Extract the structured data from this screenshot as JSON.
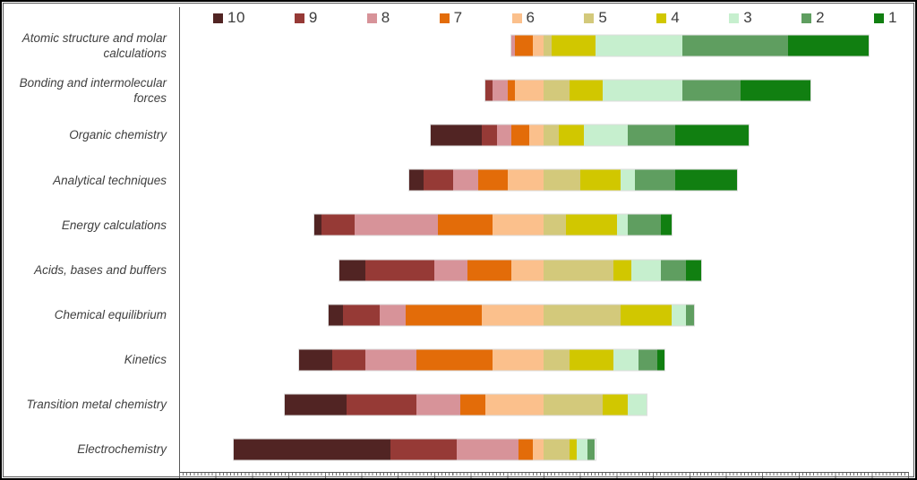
{
  "chart_data": {
    "type": "bar",
    "variant": "horizontal-diverging-stacked",
    "title": "",
    "legend_position": "top",
    "legend_order": [
      "10",
      "9",
      "8",
      "7",
      "6",
      "5",
      "4",
      "3",
      "2",
      "1"
    ],
    "axis": {
      "xmin": -100,
      "xmax": 100,
      "baseline": 0,
      "minor_tick_step": 1,
      "major_tick_step": 10,
      "tick_labels_visible": false,
      "grid": false,
      "left_side_series_count": 5
    },
    "categories": [
      "Atomic structure and molar calculations",
      "Bonding and intermolecular forces",
      "Organic chemistry",
      "Analytical techniques",
      "Energy calculations",
      "Acids, bases and buffers",
      "Chemical equilibrium",
      "Kinetics",
      "Transition metal chemistry",
      "Electrochemistry"
    ],
    "series": [
      {
        "name": "10",
        "color": "#512423",
        "values": [
          0,
          0,
          14,
          4,
          2,
          7,
          4,
          9,
          17,
          43
        ]
      },
      {
        "name": "9",
        "color": "#963a36",
        "values": [
          0,
          2,
          4,
          8,
          9,
          19,
          10,
          9,
          19,
          18
        ]
      },
      {
        "name": "8",
        "color": "#d79399",
        "values": [
          1,
          4,
          4,
          7,
          23,
          9,
          7,
          14,
          12,
          17
        ]
      },
      {
        "name": "7",
        "color": "#e36c09",
        "values": [
          5,
          2,
          5,
          8,
          15,
          12,
          21,
          21,
          7,
          4
        ]
      },
      {
        "name": "6",
        "color": "#fbc08c",
        "values": [
          3,
          8,
          4,
          10,
          14,
          9,
          17,
          14,
          16,
          3
        ]
      },
      {
        "name": "5",
        "color": "#d3c97b",
        "values": [
          2,
          7,
          4,
          10,
          6,
          19,
          21,
          7,
          16,
          7
        ]
      },
      {
        "name": "4",
        "color": "#d1c700",
        "values": [
          12,
          9,
          7,
          11,
          14,
          5,
          14,
          12,
          7,
          2
        ]
      },
      {
        "name": "3",
        "color": "#c6efce",
        "values": [
          24,
          22,
          12,
          4,
          3,
          8,
          4,
          7,
          5,
          3
        ]
      },
      {
        "name": "2",
        "color": "#5f9e60",
        "values": [
          29,
          16,
          13,
          11,
          9,
          7,
          2,
          5,
          0,
          2
        ]
      },
      {
        "name": "1",
        "color": "#117f11",
        "values": [
          22,
          19,
          20,
          17,
          3,
          4,
          0,
          2,
          0,
          0
        ]
      }
    ]
  }
}
